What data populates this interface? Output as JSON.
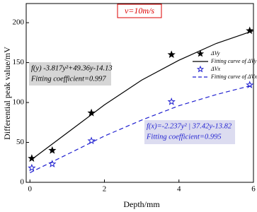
{
  "chart_data": {
    "type": "scatter",
    "title": "v=10m/s",
    "x_label": "Depth/mm",
    "y_label": "Differential peak value/mV",
    "xlim": [
      -0.1,
      6.0
    ],
    "ylim": [
      0,
      224
    ],
    "xticks": [
      0,
      2,
      4,
      6
    ],
    "yticks": [
      0,
      50,
      100,
      150,
      200
    ],
    "legend": "upper right",
    "series": [
      {
        "name": "ΔVy",
        "kind": "scatter",
        "marker": "filled-star",
        "color": "#000000",
        "x": [
          0.05,
          0.6,
          1.65,
          3.8,
          5.9
        ],
        "values": [
          30,
          40,
          87,
          160,
          190
        ]
      },
      {
        "name": "Fitting curve of ΔVy",
        "kind": "line",
        "dash": false,
        "color": "#000000",
        "x": [
          0,
          1,
          2,
          3,
          4,
          5,
          6
        ],
        "values": [
          27,
          62,
          97,
          128,
          153,
          174,
          190
        ]
      },
      {
        "name": "ΔVx",
        "kind": "scatter",
        "marker": "hollow-star",
        "color": "#1f1fd0",
        "x": [
          0.05,
          0.6,
          1.65,
          3.8,
          5.9
        ],
        "values": [
          18,
          23,
          52,
          101,
          122
        ]
      },
      {
        "name": "Fitting curve of ΔVx",
        "kind": "line",
        "dash": true,
        "color": "#1f1fd0",
        "x": [
          0,
          1,
          2,
          3,
          4,
          5,
          6
        ],
        "values": [
          12,
          35,
          58,
          78,
          96,
          110,
          122
        ]
      }
    ],
    "annotations": [
      {
        "lines": [
          "f(y) -3.817y²+49.36y-14.13",
          "Fitting coefficient=0.997"
        ],
        "color": "#000000",
        "box": "#d6d6d6"
      },
      {
        "lines": [
          "f(x)=-2.237y² | 37.42y-13.82",
          "Fitting coefficient=0.995"
        ],
        "color": "#1f1fd0",
        "box": "#dcdcf0"
      }
    ]
  }
}
